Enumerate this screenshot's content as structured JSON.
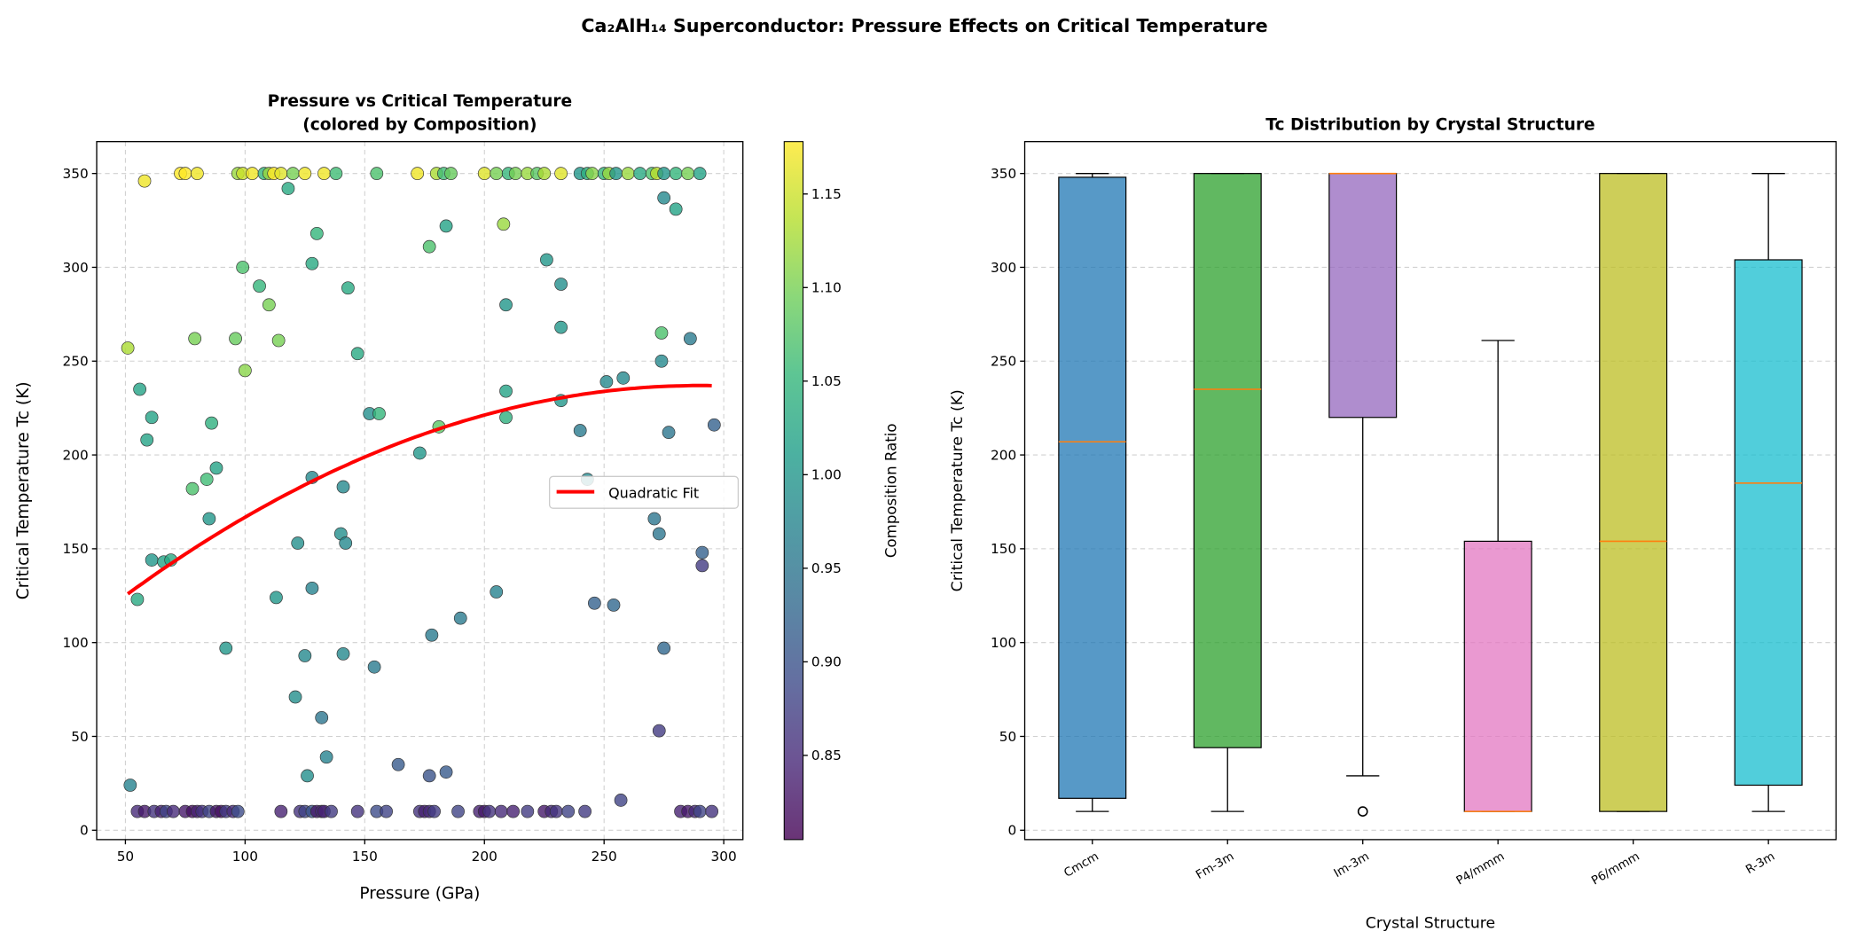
{
  "suptitle": "Ca₂AlH₁₄ Superconductor: Pressure Effects on Critical Temperature",
  "chart_data": [
    {
      "type": "scatter",
      "title_line1": "Pressure vs Critical Temperature",
      "title_line2": "(colored by Composition)",
      "xlabel": "Pressure (GPa)",
      "ylabel": "Critical Temperature Tc (K)",
      "xlim": [
        38,
        308
      ],
      "ylim": [
        -5,
        367
      ],
      "xticks": [
        "50",
        "100",
        "150",
        "200",
        "250",
        "300"
      ],
      "yticks": [
        "0",
        "50",
        "100",
        "150",
        "200",
        "250",
        "300",
        "350"
      ],
      "grid": true,
      "colormap": "viridis",
      "colorbar": {
        "label": "Composition Ratio",
        "range": [
          0.805,
          1.178
        ],
        "ticks": [
          "0.85",
          "0.90",
          "0.95",
          "1.00",
          "1.05",
          "1.10",
          "1.15"
        ]
      },
      "legend": {
        "placement": "center-right",
        "entries": [
          "Quadratic Fit"
        ]
      },
      "fit": {
        "name": "Quadratic Fit",
        "color": "#ff0000",
        "coefficients": [
          -0.001944,
          1.1275,
          73.5
        ],
        "x_range": [
          51,
          296
        ]
      },
      "points": [
        [
          73,
          350,
          1.18
        ],
        [
          75,
          350,
          1.19
        ],
        [
          80,
          350,
          1.17
        ],
        [
          97,
          350,
          1.12
        ],
        [
          99,
          350,
          1.15
        ],
        [
          103,
          350,
          1.17
        ],
        [
          108,
          350,
          1.05
        ],
        [
          110,
          350,
          1.12
        ],
        [
          112,
          350,
          1.19
        ],
        [
          115,
          350,
          1.16
        ],
        [
          120,
          350,
          1.1
        ],
        [
          125,
          350,
          1.17
        ],
        [
          133,
          350,
          1.17
        ],
        [
          138,
          350,
          1.06
        ],
        [
          155,
          350,
          1.07
        ],
        [
          172,
          350,
          1.17
        ],
        [
          180,
          350,
          1.13
        ],
        [
          183,
          350,
          1.06
        ],
        [
          186,
          350,
          1.09
        ],
        [
          200,
          350,
          1.16
        ],
        [
          205,
          350,
          1.1
        ],
        [
          210,
          350,
          1.05
        ],
        [
          213,
          350,
          1.1
        ],
        [
          218,
          350,
          1.12
        ],
        [
          222,
          350,
          1.08
        ],
        [
          225,
          350,
          1.13
        ],
        [
          232,
          350,
          1.16
        ],
        [
          240,
          350,
          1.0
        ],
        [
          243,
          350,
          1.04
        ],
        [
          245,
          350,
          1.11
        ],
        [
          250,
          350,
          1.05
        ],
        [
          252,
          350,
          1.12
        ],
        [
          255,
          350,
          1.0
        ],
        [
          260,
          350,
          1.12
        ],
        [
          265,
          350,
          1.03
        ],
        [
          270,
          350,
          1.07
        ],
        [
          272,
          350,
          1.14
        ],
        [
          275,
          350,
          1.0
        ],
        [
          280,
          350,
          1.05
        ],
        [
          285,
          350,
          1.1
        ],
        [
          290,
          350,
          1.02
        ],
        [
          58,
          346,
          1.17
        ],
        [
          51,
          257,
          1.13
        ],
        [
          56,
          235,
          1.02
        ],
        [
          59,
          208,
          1.02
        ],
        [
          61,
          220,
          1.02
        ],
        [
          52,
          24,
          0.97
        ],
        [
          55,
          123,
          1.03
        ],
        [
          61,
          144,
          1.0
        ],
        [
          66,
          143,
          1.02
        ],
        [
          69,
          144,
          1.03
        ],
        [
          78,
          182,
          1.07
        ],
        [
          79,
          262,
          1.1
        ],
        [
          84,
          187,
          1.06
        ],
        [
          85,
          166,
          1.0
        ],
        [
          86,
          217,
          1.04
        ],
        [
          88,
          193,
          1.02
        ],
        [
          92,
          97,
          1.0
        ],
        [
          96,
          262,
          1.09
        ],
        [
          99,
          300,
          1.07
        ],
        [
          100,
          245,
          1.11
        ],
        [
          106,
          290,
          1.05
        ],
        [
          110,
          280,
          1.1
        ],
        [
          113,
          124,
          1.0
        ],
        [
          114,
          261,
          1.1
        ],
        [
          118,
          342,
          1.03
        ],
        [
          121,
          71,
          0.99
        ],
        [
          122,
          153,
          0.99
        ],
        [
          125,
          93,
          0.98
        ],
        [
          126,
          29,
          0.99
        ],
        [
          128,
          302,
          1.03
        ],
        [
          128,
          129,
          0.97
        ],
        [
          128,
          188,
          0.98
        ],
        [
          130,
          318,
          1.05
        ],
        [
          132,
          60,
          0.95
        ],
        [
          134,
          39,
          0.97
        ],
        [
          140,
          158,
          0.99
        ],
        [
          141,
          183,
          0.98
        ],
        [
          141,
          94,
          0.98
        ],
        [
          142,
          153,
          0.98
        ],
        [
          143,
          289,
          1.03
        ],
        [
          147,
          254,
          1.03
        ],
        [
          152,
          222,
          0.99
        ],
        [
          154,
          87,
          0.96
        ],
        [
          156,
          222,
          1.05
        ],
        [
          164,
          35,
          0.91
        ],
        [
          173,
          201,
          1.0
        ],
        [
          177,
          311,
          1.07
        ],
        [
          178,
          104,
          0.96
        ],
        [
          177,
          29,
          0.9
        ],
        [
          181,
          215,
          1.08
        ],
        [
          184,
          322,
          1.02
        ],
        [
          184,
          31,
          0.91
        ],
        [
          190,
          113,
          0.96
        ],
        [
          205,
          127,
          0.97
        ],
        [
          208,
          323,
          1.12
        ],
        [
          209,
          234,
          1.02
        ],
        [
          209,
          280,
          1.0
        ],
        [
          209,
          220,
          1.04
        ],
        [
          226,
          304,
          1.0
        ],
        [
          232,
          291,
          0.99
        ],
        [
          232,
          268,
          1.0
        ],
        [
          232,
          229,
          1.0
        ],
        [
          240,
          213,
          0.96
        ],
        [
          243,
          187,
          0.98
        ],
        [
          246,
          121,
          0.92
        ],
        [
          254,
          120,
          0.93
        ],
        [
          251,
          239,
          0.98
        ],
        [
          257,
          16,
          0.88
        ],
        [
          258,
          241,
          0.98
        ],
        [
          271,
          166,
          0.95
        ],
        [
          273,
          53,
          0.87
        ],
        [
          273,
          158,
          0.95
        ],
        [
          274,
          265,
          1.07
        ],
        [
          274,
          250,
          0.98
        ],
        [
          275,
          337,
          0.98
        ],
        [
          275,
          97,
          0.93
        ],
        [
          277,
          212,
          0.95
        ],
        [
          280,
          331,
          1.02
        ],
        [
          286,
          262,
          0.96
        ],
        [
          291,
          148,
          0.92
        ],
        [
          291,
          141,
          0.87
        ],
        [
          296,
          216,
          0.92
        ],
        [
          55,
          10,
          0.85
        ],
        [
          58,
          10,
          0.83
        ],
        [
          62,
          10,
          0.86
        ],
        [
          65,
          10,
          0.84
        ],
        [
          67,
          10,
          0.88
        ],
        [
          70,
          10,
          0.85
        ],
        [
          75,
          10,
          0.83
        ],
        [
          78,
          10,
          0.82
        ],
        [
          80,
          10,
          0.84
        ],
        [
          82,
          10,
          0.86
        ],
        [
          85,
          10,
          0.88
        ],
        [
          88,
          10,
          0.83
        ],
        [
          90,
          10,
          0.82
        ],
        [
          92,
          10,
          0.87
        ],
        [
          95,
          10,
          0.85
        ],
        [
          97,
          10,
          0.89
        ],
        [
          115,
          10,
          0.84
        ],
        [
          123,
          10,
          0.86
        ],
        [
          125,
          10,
          0.88
        ],
        [
          128,
          10,
          0.9
        ],
        [
          130,
          10,
          0.83
        ],
        [
          132,
          10,
          0.85
        ],
        [
          133,
          10,
          0.84
        ],
        [
          136,
          10,
          0.87
        ],
        [
          147,
          10,
          0.86
        ],
        [
          155,
          10,
          0.89
        ],
        [
          159,
          10,
          0.88
        ],
        [
          173,
          10,
          0.86
        ],
        [
          175,
          10,
          0.84
        ],
        [
          177,
          10,
          0.85
        ],
        [
          179,
          10,
          0.87
        ],
        [
          189,
          10,
          0.88
        ],
        [
          198,
          10,
          0.84
        ],
        [
          200,
          10,
          0.83
        ],
        [
          202,
          10,
          0.86
        ],
        [
          207,
          10,
          0.85
        ],
        [
          212,
          10,
          0.84
        ],
        [
          218,
          10,
          0.87
        ],
        [
          225,
          10,
          0.83
        ],
        [
          228,
          10,
          0.85
        ],
        [
          230,
          10,
          0.86
        ],
        [
          235,
          10,
          0.88
        ],
        [
          242,
          10,
          0.87
        ],
        [
          282,
          10,
          0.84
        ],
        [
          285,
          10,
          0.83
        ],
        [
          288,
          10,
          0.85
        ],
        [
          290,
          10,
          0.88
        ],
        [
          295,
          10,
          0.86
        ]
      ]
    },
    {
      "type": "box",
      "title": "Tc Distribution by Crystal Structure",
      "xlabel": "Crystal Structure",
      "ylabel": "Critical Temperature Tc (K)",
      "ylim": [
        -5,
        367
      ],
      "yticks": [
        "0",
        "50",
        "100",
        "150",
        "200",
        "250",
        "300",
        "350"
      ],
      "grid": true,
      "median_color": "#ff7f0e",
      "categories": [
        "Cmcm",
        "Fm-3m",
        "Im-3m",
        "P4/mmm",
        "P6/mmm",
        "R-3m"
      ],
      "boxes": [
        {
          "name": "Cmcm",
          "whisker_low": 10,
          "q1": 17,
          "median": 207,
          "q3": 348,
          "whisker_high": 350,
          "outliers": [],
          "color": "#1f77b4"
        },
        {
          "name": "Fm-3m",
          "whisker_low": 10,
          "q1": 44,
          "median": 235,
          "q3": 350,
          "whisker_high": 350,
          "outliers": [],
          "color": "#2ca02c"
        },
        {
          "name": "Im-3m",
          "whisker_low": 29,
          "q1": 220,
          "median": 350,
          "q3": 350,
          "whisker_high": 350,
          "outliers": [
            10
          ],
          "color": "#9467bd"
        },
        {
          "name": "P4/mmm",
          "whisker_low": 10,
          "q1": 10,
          "median": 10,
          "q3": 154,
          "whisker_high": 261,
          "outliers": [],
          "color": "#e377c2"
        },
        {
          "name": "P6/mmm",
          "whisker_low": 10,
          "q1": 10,
          "median": 154,
          "q3": 350,
          "whisker_high": 350,
          "outliers": [],
          "color": "#bcbd22"
        },
        {
          "name": "R-3m",
          "whisker_low": 10,
          "q1": 24,
          "median": 185,
          "q3": 304,
          "whisker_high": 350,
          "outliers": [],
          "color": "#17becf"
        }
      ]
    }
  ]
}
